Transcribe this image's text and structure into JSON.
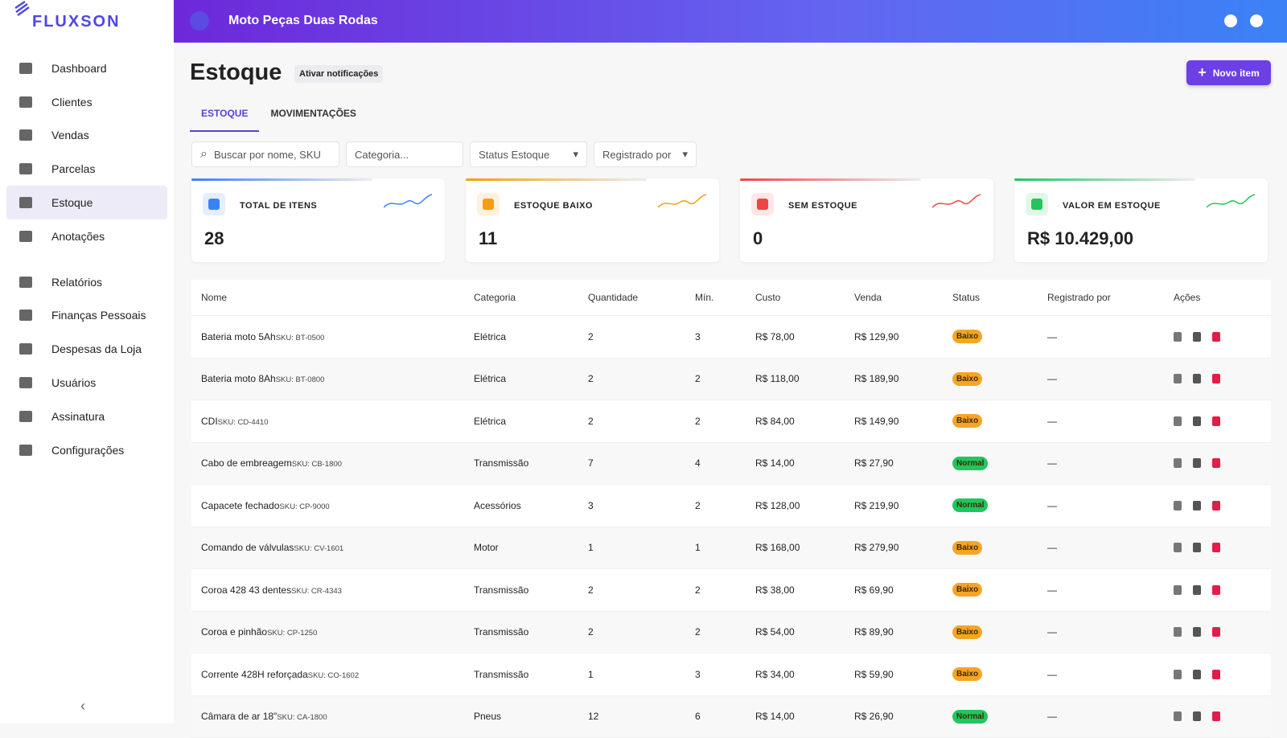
{
  "sidebar": {
    "brand": "FLUXSON",
    "nav": [
      "Dashboard",
      "Clientes",
      "Vendas",
      "Parcelas",
      "Estoque",
      "Anotações",
      "Relatórios",
      "Finanças Pessoais",
      "Despesas da Loja",
      "Usuários",
      "Assinatura",
      "Configurações"
    ],
    "collapse": "‹"
  },
  "header": {
    "title": "Moto Peças Duas Rodas"
  },
  "page": {
    "title": "Estoque",
    "notify_button": "Ativar notificações",
    "new_button": "Novo item",
    "tabs": [
      "ESTOQUE",
      "MOVIMENTAÇÕES"
    ],
    "filters": [
      "Buscar por nome, SKU",
      "Categoria...",
      "Status Estoque",
      "Registrado por"
    ]
  },
  "cards": [
    {
      "label": "TOTAL DE ITENS",
      "value": "28",
      "color": "#3b82f6"
    },
    {
      "label": "ESTOQUE BAIXO",
      "value": "11",
      "color": "#f59e0b"
    },
    {
      "label": "SEM ESTOQUE",
      "value": "0",
      "color": "#ef4444"
    },
    {
      "label": "VALOR EM ESTOQUE",
      "value": "R$ 10.429,00",
      "color": "#22c55e"
    }
  ],
  "table": {
    "columns": [
      "Nome",
      "Categoria",
      "Quantidade",
      "Mín.",
      "Custo",
      "Venda",
      "Status",
      "Registrado por",
      "Ações"
    ],
    "rows": [
      {
        "name": "Bateria moto 5Ah",
        "sku": "SKU: BT-0500",
        "category": "Elétrica",
        "qty": "2",
        "min": "3",
        "cost": "R$ 78,00",
        "price": "R$ 129,90",
        "status": "Baixo",
        "status_color": "#f5a524",
        "registered": "—"
      },
      {
        "name": "Bateria moto 8Ah",
        "sku": "SKU: BT-0800",
        "category": "Elétrica",
        "qty": "2",
        "min": "2",
        "cost": "R$ 118,00",
        "price": "R$ 189,90",
        "status": "Baixo",
        "status_color": "#f5a524",
        "registered": "—"
      },
      {
        "name": "CDI",
        "sku": "SKU: CD-4410",
        "category": "Elétrica",
        "qty": "2",
        "min": "2",
        "cost": "R$ 84,00",
        "price": "R$ 149,90",
        "status": "Baixo",
        "status_color": "#f5a524",
        "registered": "—"
      },
      {
        "name": "Cabo de embreagem",
        "sku": "SKU: CB-1800",
        "category": "Transmissão",
        "qty": "7",
        "min": "4",
        "cost": "R$ 14,00",
        "price": "R$ 27,90",
        "status": "Normal",
        "status_color": "#22c55e",
        "registered": "—"
      },
      {
        "name": "Capacete fechado",
        "sku": "SKU: CP-9000",
        "category": "Acessórios",
        "qty": "3",
        "min": "2",
        "cost": "R$ 128,00",
        "price": "R$ 219,90",
        "status": "Normal",
        "status_color": "#22c55e",
        "registered": "—"
      },
      {
        "name": "Comando de válvulas",
        "sku": "SKU: CV-1601",
        "category": "Motor",
        "qty": "1",
        "min": "1",
        "cost": "R$ 168,00",
        "price": "R$ 279,90",
        "status": "Baixo",
        "status_color": "#f5a524",
        "registered": "—"
      },
      {
        "name": "Coroa 428 43 dentes",
        "sku": "SKU: CR-4343",
        "category": "Transmissão",
        "qty": "2",
        "min": "2",
        "cost": "R$ 38,00",
        "price": "R$ 69,90",
        "status": "Baixo",
        "status_color": "#f5a524",
        "registered": "—"
      },
      {
        "name": "Coroa e pinhão",
        "sku": "SKU: CP-1250",
        "category": "Transmissão",
        "qty": "2",
        "min": "2",
        "cost": "R$ 54,00",
        "price": "R$ 89,90",
        "status": "Baixo",
        "status_color": "#f5a524",
        "registered": "—"
      },
      {
        "name": "Corrente 428H reforçada",
        "sku": "SKU: CO-1602",
        "category": "Transmissão",
        "qty": "1",
        "min": "3",
        "cost": "R$ 34,00",
        "price": "R$ 59,90",
        "status": "Baixo",
        "status_color": "#f5a524",
        "registered": "—"
      },
      {
        "name": "Câmara de ar 18\"",
        "sku": "SKU: CA-1800",
        "category": "Pneus",
        "qty": "12",
        "min": "6",
        "cost": "R$ 14,00",
        "price": "R$ 26,90",
        "status": "Normal",
        "status_color": "#22c55e",
        "registered": "—"
      }
    ]
  }
}
